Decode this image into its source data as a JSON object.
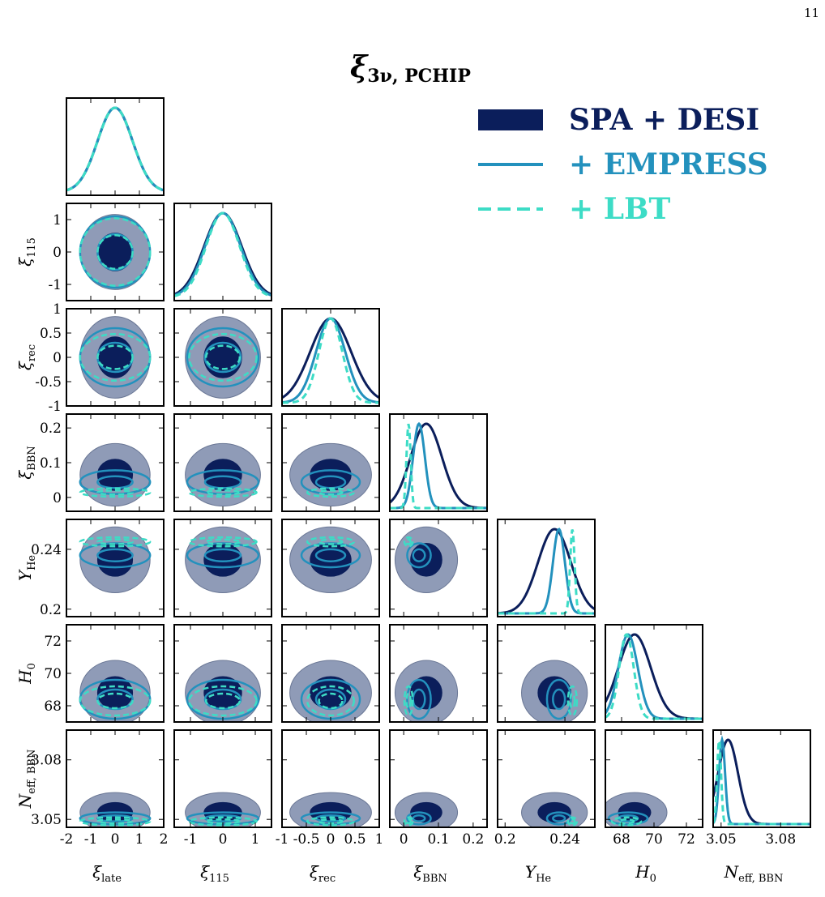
{
  "page_number": "11",
  "title": {
    "main": "ξ",
    "sub": "3ν, PCHIP"
  },
  "colors": {
    "spa_desi": "#0b1e5b",
    "spa_desi_outer": "#8f9bb7",
    "empress": "#2391bd",
    "lbt": "#3ddcc6"
  },
  "legend": {
    "position": "top-right",
    "items": [
      {
        "label": "SPA + DESI",
        "style": "filled"
      },
      {
        "label": "+ EMPRESS",
        "style": "solid"
      },
      {
        "label": "+ LBT",
        "style": "dashed"
      }
    ]
  },
  "chart_data": {
    "type": "corner",
    "parameters": [
      {
        "id": "xi_late",
        "label": "ξ",
        "sub": "late",
        "range": [
          -2,
          2
        ],
        "ticks": [
          "-2",
          "-1",
          "0",
          "1",
          "2"
        ],
        "tick_values": [
          -2,
          -1,
          0,
          1,
          2
        ]
      },
      {
        "id": "xi_115",
        "label": "ξ",
        "sub": "115",
        "range": [
          -1.5,
          1.5
        ],
        "ticks": [
          "-1",
          "0",
          "1"
        ],
        "tick_values": [
          -1,
          0,
          1
        ]
      },
      {
        "id": "xi_rec",
        "label": "ξ",
        "sub": "rec",
        "range": [
          -1,
          1
        ],
        "ticks": [
          "-1",
          "-0.5",
          "0",
          "0.5",
          "1"
        ],
        "tick_values": [
          -1,
          -0.5,
          0,
          0.5,
          1
        ]
      },
      {
        "id": "xi_bbn",
        "label": "ξ",
        "sub": "BBN",
        "range": [
          -0.04,
          0.24
        ],
        "ticks": [
          "0",
          "0.1",
          "0.2"
        ],
        "tick_values": [
          0,
          0.1,
          0.2
        ]
      },
      {
        "id": "y_he",
        "label": "Y",
        "sub": "He",
        "range": [
          0.195,
          0.26
        ],
        "ticks": [
          "0.2",
          "0.24"
        ],
        "tick_values": [
          0.2,
          0.24
        ]
      },
      {
        "id": "h0",
        "label": "H",
        "sub": "0",
        "range": [
          67,
          73
        ],
        "ticks": [
          "68",
          "70",
          "72"
        ],
        "tick_values": [
          68,
          70,
          72
        ]
      },
      {
        "id": "neff_bbn",
        "label": "N",
        "sub": "eff, BBN",
        "range": [
          3.046,
          3.095
        ],
        "ticks": [
          "3.05",
          "3.08"
        ],
        "tick_values": [
          3.05,
          3.08
        ]
      }
    ],
    "series": [
      {
        "name": "SPA + DESI",
        "means": [
          0,
          0,
          0,
          0.065,
          0.233,
          68.8,
          3.0535
        ],
        "sigmas": [
          0.72,
          0.58,
          0.42,
          0.045,
          0.011,
          1.0,
          0.005
        ]
      },
      {
        "name": "+ EMPRESS",
        "means": [
          0,
          0,
          0,
          0.044,
          0.236,
          68.4,
          3.0505
        ],
        "sigmas": [
          0.72,
          0.55,
          0.3,
          0.017,
          0.004,
          0.6,
          0.0015
        ]
      },
      {
        "name": "+ LBT",
        "means": [
          0,
          0,
          0,
          0.014,
          0.245,
          68.3,
          3.049
        ],
        "sigmas": [
          0.72,
          0.52,
          0.24,
          0.006,
          0.0015,
          0.45,
          0.001
        ]
      }
    ]
  }
}
